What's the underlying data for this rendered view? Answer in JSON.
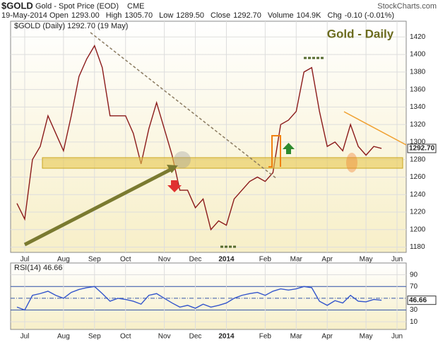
{
  "header": {
    "symbol": "$GOLD",
    "name": "Gold - Spot Price (EOD)",
    "exchange": "CME",
    "source": "StockCharts.com",
    "date": "19-May-2014",
    "stats": [
      {
        "label": "Open",
        "value": "1293.00"
      },
      {
        "label": "High",
        "value": "1305.70"
      },
      {
        "label": "Low",
        "value": "1289.50"
      },
      {
        "label": "Close",
        "value": "1292.70"
      },
      {
        "label": "Volume",
        "value": "104.9K"
      },
      {
        "label": "Chg",
        "value": "-0.10 (-0.01%)"
      }
    ]
  },
  "chart_data": [
    {
      "type": "line",
      "title": "Gold - Daily",
      "categories": [
        null,
        "Jul",
        null,
        null,
        null,
        null,
        "Aug",
        null,
        null,
        null,
        "Sep",
        null,
        null,
        null,
        "Oct",
        null,
        null,
        null,
        null,
        "Nov",
        null,
        null,
        null,
        "Dec",
        null,
        null,
        null,
        "2014",
        null,
        null,
        null,
        null,
        "Feb",
        null,
        null,
        null,
        "Mar",
        null,
        null,
        null,
        "Apr",
        null,
        null,
        null,
        null,
        "May",
        null,
        null,
        null,
        "Jun"
      ],
      "series": [
        {
          "name": "$GOLD (Daily) 1292.70 (19 May)",
          "color": "#8b1a1a",
          "values": [
            1230,
            1212,
            1280,
            1295,
            1330,
            1310,
            1290,
            1330,
            1375,
            1395,
            1410,
            1385,
            1330,
            1330,
            1330,
            1310,
            1275,
            1315,
            1345,
            1315,
            1285,
            1245,
            1245,
            1225,
            1235,
            1200,
            1210,
            1205,
            1235,
            1245,
            1255,
            1260,
            1255,
            1265,
            1320,
            1325,
            1335,
            1380,
            1385,
            1335,
            1295,
            1300,
            1290,
            1320,
            1295,
            1285,
            1295,
            1292.7,
            null,
            null
          ],
          "value_labels": [
            null,
            null,
            null,
            null,
            null,
            null,
            null,
            null,
            null,
            null,
            null,
            null,
            null,
            null,
            null,
            null,
            null,
            null,
            null,
            null,
            null,
            null,
            null,
            null,
            null,
            null,
            null,
            null,
            null,
            null,
            null,
            null,
            null,
            null,
            null,
            null,
            null,
            null,
            null,
            null,
            null,
            null,
            null,
            null,
            null,
            null,
            null,
            "1292.70",
            null,
            null
          ]
        }
      ],
      "ylim": [
        1174,
        1438
      ],
      "yticks": [
        1180,
        1200,
        1220,
        1240,
        1260,
        1280,
        1300,
        1320,
        1340,
        1360,
        1380,
        1400,
        1420
      ],
      "grid": true
    },
    {
      "type": "line",
      "categories": [
        null,
        "Jul",
        null,
        null,
        null,
        null,
        "Aug",
        null,
        null,
        null,
        "Sep",
        null,
        null,
        null,
        "Oct",
        null,
        null,
        null,
        null,
        "Nov",
        null,
        null,
        null,
        "Dec",
        null,
        null,
        null,
        "2014",
        null,
        null,
        null,
        null,
        "Feb",
        null,
        null,
        null,
        "Mar",
        null,
        null,
        null,
        "Apr",
        null,
        null,
        null,
        null,
        "May",
        null,
        null,
        null,
        "Jun"
      ],
      "series": [
        {
          "name": "RSI(14) 46.66",
          "color": "#3355cc",
          "values": [
            35,
            30,
            55,
            58,
            62,
            55,
            50,
            60,
            65,
            68,
            70,
            58,
            45,
            50,
            48,
            45,
            40,
            55,
            58,
            50,
            42,
            35,
            38,
            33,
            40,
            35,
            38,
            42,
            50,
            55,
            58,
            60,
            55,
            62,
            66,
            64,
            66,
            70,
            68,
            45,
            38,
            46,
            42,
            55,
            45,
            44,
            48,
            46.66,
            null,
            null
          ],
          "value_labels": [
            null,
            null,
            null,
            null,
            null,
            null,
            null,
            null,
            null,
            null,
            null,
            null,
            null,
            null,
            null,
            null,
            null,
            null,
            null,
            null,
            null,
            null,
            null,
            null,
            null,
            null,
            null,
            null,
            null,
            null,
            null,
            null,
            null,
            null,
            null,
            null,
            null,
            null,
            null,
            null,
            null,
            null,
            null,
            null,
            null,
            null,
            null,
            "46.66",
            null,
            null
          ]
        }
      ],
      "ylim": [
        -3,
        110
      ],
      "yticks": [
        10,
        30,
        70,
        90
      ],
      "ref_lines": [
        30,
        50,
        70
      ],
      "grid": true
    }
  ]
}
